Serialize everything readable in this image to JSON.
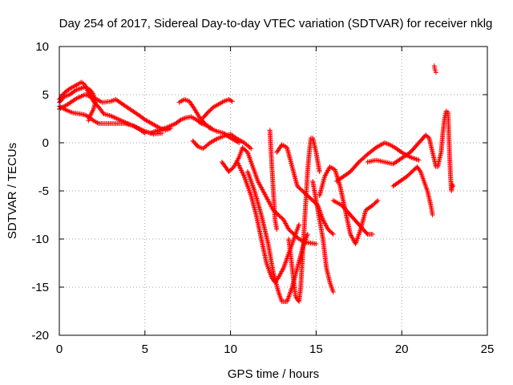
{
  "chart_data": {
    "type": "scatter",
    "title": "Day 254 of 2017, Sidereal Day-to-day VTEC variation (SDTVAR) for receiver nklg",
    "xlabel": "GPS time / hours",
    "ylabel": "SDTVAR / TECUs",
    "xlim": [
      0,
      25
    ],
    "ylim": [
      -20,
      10
    ],
    "xticks": [
      0,
      5,
      10,
      15,
      20,
      25
    ],
    "yticks": [
      -20,
      -15,
      -10,
      -5,
      0,
      5,
      10
    ],
    "xtick_labels": [
      "0",
      "5",
      "10",
      "15",
      "20",
      "25"
    ],
    "ytick_labels": [
      "-20",
      "-15",
      "-10",
      "-5",
      "0",
      "5",
      "10"
    ],
    "grid": true,
    "marker": "+",
    "color": "#ff0000",
    "series": [
      {
        "name": "track-1",
        "points": [
          [
            0,
            4.5
          ],
          [
            0.3,
            5.2
          ],
          [
            0.6,
            5.6
          ],
          [
            1.0,
            6.0
          ],
          [
            1.3,
            6.3
          ],
          [
            1.5,
            6.0
          ],
          [
            1.7,
            5.2
          ],
          [
            2.0,
            4.3
          ],
          [
            2.3,
            3.7
          ],
          [
            2.6,
            3.0
          ],
          [
            3.0,
            2.8
          ],
          [
            3.5,
            2.4
          ],
          [
            4.0,
            2.0
          ],
          [
            4.5,
            1.6
          ],
          [
            5.0,
            1.2
          ],
          [
            5.5,
            0.9
          ],
          [
            6.0,
            1.0
          ]
        ]
      },
      {
        "name": "track-2",
        "points": [
          [
            0,
            3.5
          ],
          [
            0.5,
            4.0
          ],
          [
            1.0,
            4.6
          ],
          [
            1.5,
            5.0
          ],
          [
            2.0,
            4.7
          ],
          [
            2.5,
            4.2
          ],
          [
            3.0,
            4.3
          ],
          [
            3.3,
            4.5
          ],
          [
            3.7,
            4.0
          ],
          [
            4.2,
            3.4
          ],
          [
            4.7,
            2.8
          ],
          [
            5.0,
            2.4
          ],
          [
            5.4,
            2.0
          ],
          [
            5.8,
            1.6
          ],
          [
            6.2,
            1.3
          ],
          [
            6.5,
            1.5
          ]
        ]
      },
      {
        "name": "track-3",
        "points": [
          [
            0,
            3.8
          ],
          [
            0.4,
            3.4
          ],
          [
            0.8,
            3.1
          ],
          [
            1.2,
            3.0
          ],
          [
            1.5,
            2.9
          ],
          [
            1.8,
            2.6
          ],
          [
            2.0,
            2.3
          ],
          [
            2.3,
            2.0
          ],
          [
            2.8,
            2.0
          ],
          [
            3.3,
            2.0
          ],
          [
            3.8,
            2.0
          ],
          [
            4.3,
            1.8
          ],
          [
            4.6,
            1.5
          ],
          [
            5.0,
            1.0
          ]
        ]
      },
      {
        "name": "track-4",
        "points": [
          [
            0,
            4.2
          ],
          [
            0.3,
            4.8
          ],
          [
            0.6,
            5.0
          ],
          [
            1.0,
            5.5
          ],
          [
            1.5,
            5.8
          ],
          [
            1.8,
            5.5
          ],
          [
            2.0,
            5.0
          ],
          [
            2.1,
            4.2
          ],
          [
            2.0,
            3.5
          ],
          [
            1.8,
            2.8
          ],
          [
            1.7,
            2.3
          ]
        ]
      },
      {
        "name": "track-5",
        "points": [
          [
            5.3,
            1.0
          ],
          [
            5.8,
            1.3
          ],
          [
            6.3,
            1.6
          ],
          [
            6.8,
            2.0
          ],
          [
            7.1,
            2.4
          ],
          [
            7.4,
            2.6
          ],
          [
            7.7,
            2.7
          ],
          [
            8.0,
            2.4
          ],
          [
            8.3,
            2.0
          ],
          [
            8.6,
            1.8
          ],
          [
            8.9,
            1.5
          ]
        ]
      },
      {
        "name": "track-6",
        "points": [
          [
            7.0,
            4.2
          ],
          [
            7.3,
            4.5
          ],
          [
            7.6,
            4.3
          ],
          [
            7.9,
            3.5
          ],
          [
            8.2,
            2.6
          ],
          [
            8.5,
            2.0
          ],
          [
            8.8,
            1.5
          ],
          [
            9.2,
            1.2
          ],
          [
            9.6,
            1.0
          ],
          [
            10.0,
            0.5
          ],
          [
            10.5,
            0
          ]
        ]
      },
      {
        "name": "track-7",
        "points": [
          [
            8.4,
            2.6
          ],
          [
            8.7,
            3.2
          ],
          [
            9.0,
            3.7
          ],
          [
            9.3,
            4.0
          ],
          [
            9.6,
            4.3
          ],
          [
            9.9,
            4.5
          ],
          [
            10.1,
            4.3
          ]
        ]
      },
      {
        "name": "track-8",
        "points": [
          [
            7.8,
            0.2
          ],
          [
            8.1,
            -0.4
          ],
          [
            8.4,
            -0.6
          ],
          [
            8.8,
            0
          ],
          [
            9.2,
            0.4
          ],
          [
            9.6,
            0.7
          ],
          [
            10.0,
            0.9
          ],
          [
            10.4,
            0.4
          ],
          [
            10.8,
            0
          ],
          [
            11.2,
            -0.6
          ]
        ]
      },
      {
        "name": "track-9",
        "points": [
          [
            9.5,
            -2.0
          ],
          [
            9.9,
            -3.0
          ],
          [
            10.2,
            -2.5
          ],
          [
            10.5,
            -1.5
          ],
          [
            10.7,
            -0.5
          ],
          [
            11.0,
            -1.0
          ],
          [
            11.3,
            -2.5
          ],
          [
            11.6,
            -4.0
          ],
          [
            11.9,
            -5.0
          ],
          [
            12.2,
            -6.0
          ],
          [
            12.5,
            -7.0
          ],
          [
            12.8,
            -7.5
          ],
          [
            13.1,
            -8.0
          ],
          [
            13.4,
            -9.0
          ],
          [
            13.7,
            -9.5
          ],
          [
            14.0,
            -10.0
          ],
          [
            14.3,
            -10.3
          ],
          [
            14.6,
            -10.4
          ],
          [
            15.0,
            -10.5
          ]
        ]
      },
      {
        "name": "track-10",
        "points": [
          [
            10.4,
            -2.0
          ],
          [
            10.8,
            -3.5
          ],
          [
            11.2,
            -5.5
          ],
          [
            11.5,
            -7.5
          ],
          [
            11.8,
            -10.0
          ],
          [
            12.1,
            -12.5
          ],
          [
            12.4,
            -14.0
          ],
          [
            12.6,
            -14.5
          ],
          [
            12.8,
            -14.0
          ],
          [
            13.1,
            -13.0
          ],
          [
            13.4,
            -11.5
          ],
          [
            13.7,
            -10.0
          ],
          [
            14.0,
            -8.5
          ]
        ]
      },
      {
        "name": "track-11",
        "points": [
          [
            11.0,
            -3.0
          ],
          [
            11.4,
            -5.0
          ],
          [
            11.8,
            -7.5
          ],
          [
            12.2,
            -10.5
          ],
          [
            12.5,
            -13.5
          ],
          [
            12.8,
            -15.5
          ],
          [
            13.0,
            -16.5
          ],
          [
            13.3,
            -16.5
          ],
          [
            13.6,
            -15.0
          ],
          [
            13.9,
            -13.0
          ],
          [
            14.2,
            -11.0
          ],
          [
            14.5,
            -9.5
          ]
        ]
      },
      {
        "name": "track-12",
        "points": [
          [
            12.3,
            1.3
          ],
          [
            12.4,
            -2.0
          ],
          [
            12.5,
            -5.0
          ],
          [
            12.6,
            -8.0
          ],
          [
            12.7,
            -9.0
          ]
        ]
      },
      {
        "name": "track-13",
        "points": [
          [
            12.7,
            -1.0
          ],
          [
            13.0,
            -0.2
          ],
          [
            13.3,
            -0.5
          ],
          [
            13.6,
            -2.5
          ],
          [
            13.9,
            -4.5
          ],
          [
            14.2,
            -5.0
          ],
          [
            14.5,
            -5.5
          ],
          [
            14.8,
            -6.0
          ],
          [
            15.1,
            -6.5
          ],
          [
            15.4,
            -8.0
          ],
          [
            15.7,
            -9.0
          ],
          [
            16.0,
            -9.5
          ]
        ]
      },
      {
        "name": "track-14",
        "points": [
          [
            13.4,
            -10.0
          ],
          [
            13.6,
            -13.0
          ],
          [
            13.8,
            -16.0
          ],
          [
            14.0,
            -16.5
          ],
          [
            14.1,
            -15.0
          ],
          [
            14.2,
            -12.0
          ],
          [
            14.3,
            -9.0
          ],
          [
            14.4,
            -6.0
          ],
          [
            14.5,
            -3.0
          ],
          [
            14.6,
            -1.0
          ],
          [
            14.7,
            0.5
          ],
          [
            14.8,
            0.5
          ],
          [
            15.0,
            -1.0
          ],
          [
            15.2,
            -3.0
          ]
        ]
      },
      {
        "name": "track-15",
        "points": [
          [
            14.8,
            -4.0
          ],
          [
            15.1,
            -7.0
          ],
          [
            15.4,
            -10.0
          ],
          [
            15.6,
            -13.0
          ],
          [
            15.8,
            -14.5
          ],
          [
            16.0,
            -15.5
          ]
        ]
      },
      {
        "name": "track-16",
        "points": [
          [
            15.2,
            -5.5
          ],
          [
            15.5,
            -3.5
          ],
          [
            15.8,
            -2.5
          ],
          [
            16.1,
            -2.8
          ],
          [
            16.4,
            -4.5
          ],
          [
            16.7,
            -7.0
          ],
          [
            17.0,
            -9.5
          ],
          [
            17.3,
            -10.5
          ],
          [
            17.6,
            -9.0
          ],
          [
            17.9,
            -7.0
          ],
          [
            18.3,
            -6.5
          ],
          [
            18.6,
            -6.0
          ]
        ]
      },
      {
        "name": "track-17",
        "points": [
          [
            16.0,
            -6.0
          ],
          [
            16.5,
            -6.5
          ],
          [
            17.0,
            -7.5
          ],
          [
            17.5,
            -8.5
          ],
          [
            18.0,
            -9.5
          ],
          [
            18.3,
            -9.5
          ]
        ]
      },
      {
        "name": "track-18",
        "points": [
          [
            16.2,
            -4.0
          ],
          [
            16.6,
            -3.5
          ],
          [
            17.0,
            -3.0
          ],
          [
            17.5,
            -2.0
          ],
          [
            18.0,
            -1.2
          ],
          [
            18.5,
            -0.5
          ],
          [
            19.0,
            0
          ],
          [
            19.3,
            -0.2
          ],
          [
            19.6,
            -0.5
          ],
          [
            20.0,
            -1.0
          ],
          [
            20.5,
            -1.5
          ],
          [
            21.0,
            -1.8
          ]
        ]
      },
      {
        "name": "track-19",
        "points": [
          [
            18.0,
            -2.0
          ],
          [
            18.5,
            -1.8
          ],
          [
            19.0,
            -2.0
          ],
          [
            19.5,
            -2.2
          ],
          [
            20.0,
            -1.6
          ],
          [
            20.5,
            -1.0
          ],
          [
            21.0,
            0
          ],
          [
            21.4,
            0.8
          ],
          [
            21.6,
            0.5
          ],
          [
            21.8,
            -1.0
          ],
          [
            22.0,
            -2.5
          ]
        ]
      },
      {
        "name": "track-20",
        "points": [
          [
            19.5,
            -4.5
          ],
          [
            19.9,
            -4.0
          ],
          [
            20.3,
            -3.5
          ],
          [
            20.6,
            -3.0
          ],
          [
            20.9,
            -2.5
          ],
          [
            21.1,
            -3.0
          ],
          [
            21.3,
            -4.0
          ],
          [
            21.5,
            -5.0
          ],
          [
            21.7,
            -6.5
          ],
          [
            21.8,
            -7.5
          ]
        ]
      },
      {
        "name": "track-21",
        "points": [
          [
            21.9,
            8.0
          ],
          [
            21.95,
            7.5
          ],
          [
            22.0,
            7.3
          ]
        ]
      },
      {
        "name": "track-22",
        "points": [
          [
            22.1,
            -2.5
          ],
          [
            22.3,
            -1.0
          ],
          [
            22.4,
            1.0
          ],
          [
            22.5,
            2.5
          ],
          [
            22.6,
            3.3
          ],
          [
            22.7,
            3.2
          ],
          [
            22.75,
            1.0
          ],
          [
            22.8,
            -1.5
          ],
          [
            22.85,
            -3.5
          ],
          [
            22.9,
            -5.0
          ],
          [
            22.95,
            -4.3
          ],
          [
            23.0,
            -4.5
          ]
        ]
      }
    ]
  }
}
